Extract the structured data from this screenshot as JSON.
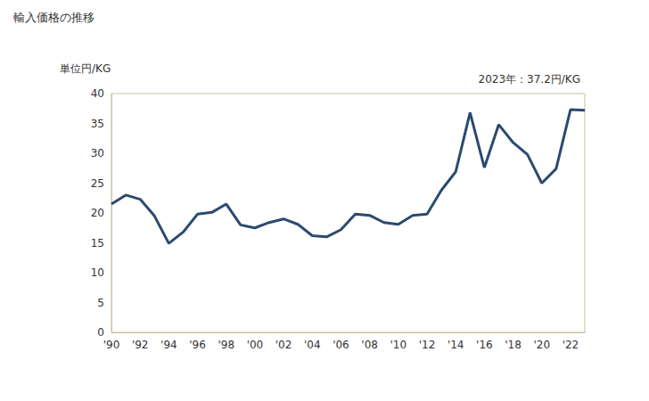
{
  "chart_data": {
    "type": "line",
    "title": "輸入価格の推移",
    "ylabel": "単位円/KG",
    "annotation": "2023年：37.2円/KG",
    "categories": [
      "'90",
      null,
      "'92",
      null,
      "'94",
      null,
      "'96",
      null,
      "'98",
      null,
      "'00",
      null,
      "'02",
      null,
      "'04",
      null,
      "'06",
      null,
      "'08",
      null,
      "'10",
      null,
      "'12",
      null,
      "'14",
      null,
      "'16",
      null,
      "'18",
      null,
      "'20",
      null,
      "'22",
      null
    ],
    "values": [
      21.5,
      23.0,
      22.3,
      19.5,
      14.9,
      16.8,
      19.8,
      20.1,
      21.5,
      18.0,
      17.5,
      18.4,
      19.0,
      18.1,
      16.2,
      16.0,
      17.2,
      19.8,
      19.6,
      18.4,
      18.1,
      19.6,
      19.8,
      23.8,
      26.9,
      36.8,
      27.6,
      34.8,
      31.8,
      29.8,
      25.0,
      27.4,
      37.3,
      37.2
    ],
    "color": "#2b4a70",
    "ylim": [
      0,
      40
    ],
    "yticks": [
      0,
      5,
      10,
      15,
      20,
      25,
      30,
      35,
      40
    ],
    "grid": false
  }
}
